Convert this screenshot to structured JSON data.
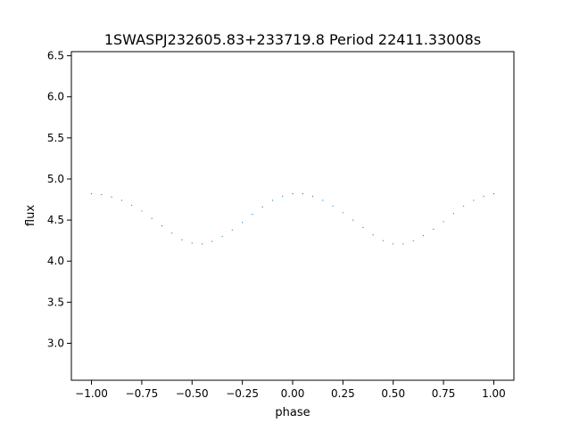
{
  "chart_data": {
    "type": "scatter",
    "title": "1SWASPJ232605.83+233719.8 Period 22411.33008s",
    "xlabel": "phase",
    "ylabel": "flux",
    "xlim": [
      -1.1,
      1.1
    ],
    "ylim": [
      2.55,
      6.55
    ],
    "xticks": [
      -1.0,
      -0.75,
      -0.5,
      -0.25,
      0.0,
      0.25,
      0.5,
      0.75,
      1.0
    ],
    "xtick_labels": [
      "−1.00",
      "−0.75",
      "−0.50",
      "−0.25",
      "0.00",
      "0.25",
      "0.50",
      "0.75",
      "1.00"
    ],
    "yticks": [
      3.0,
      3.5,
      4.0,
      4.5,
      5.0,
      5.5,
      6.0,
      6.5
    ],
    "ytick_labels": [
      "3.0",
      "3.5",
      "4.0",
      "4.5",
      "5.0",
      "5.5",
      "6.0",
      "6.5"
    ],
    "grid": false,
    "legend": "none",
    "marker_color": "#1f77b4",
    "series": [
      {
        "x": [
          -1.0,
          -0.95,
          -0.9,
          -0.85,
          -0.8,
          -0.75,
          -0.7,
          -0.65,
          -0.6,
          -0.55,
          -0.5,
          -0.45,
          -0.4,
          -0.35,
          -0.3,
          -0.25,
          -0.2,
          -0.15,
          -0.1,
          -0.05,
          0.0,
          0.05,
          0.1,
          0.15,
          0.2,
          0.25,
          0.3,
          0.35,
          0.4,
          0.45,
          0.5,
          0.55,
          0.6,
          0.65,
          0.7,
          0.75,
          0.8,
          0.85,
          0.9,
          0.95,
          1.0
        ],
        "y": [
          4.82,
          4.81,
          4.78,
          4.74,
          4.68,
          4.61,
          4.52,
          4.43,
          4.34,
          4.26,
          4.22,
          4.21,
          4.24,
          4.3,
          4.38,
          4.47,
          4.57,
          4.66,
          4.74,
          4.79,
          4.82,
          4.82,
          4.79,
          4.74,
          4.67,
          4.59,
          4.5,
          4.41,
          4.32,
          4.25,
          4.21,
          4.21,
          4.25,
          4.31,
          4.39,
          4.48,
          4.58,
          4.67,
          4.74,
          4.79,
          4.82
        ]
      }
    ]
  }
}
